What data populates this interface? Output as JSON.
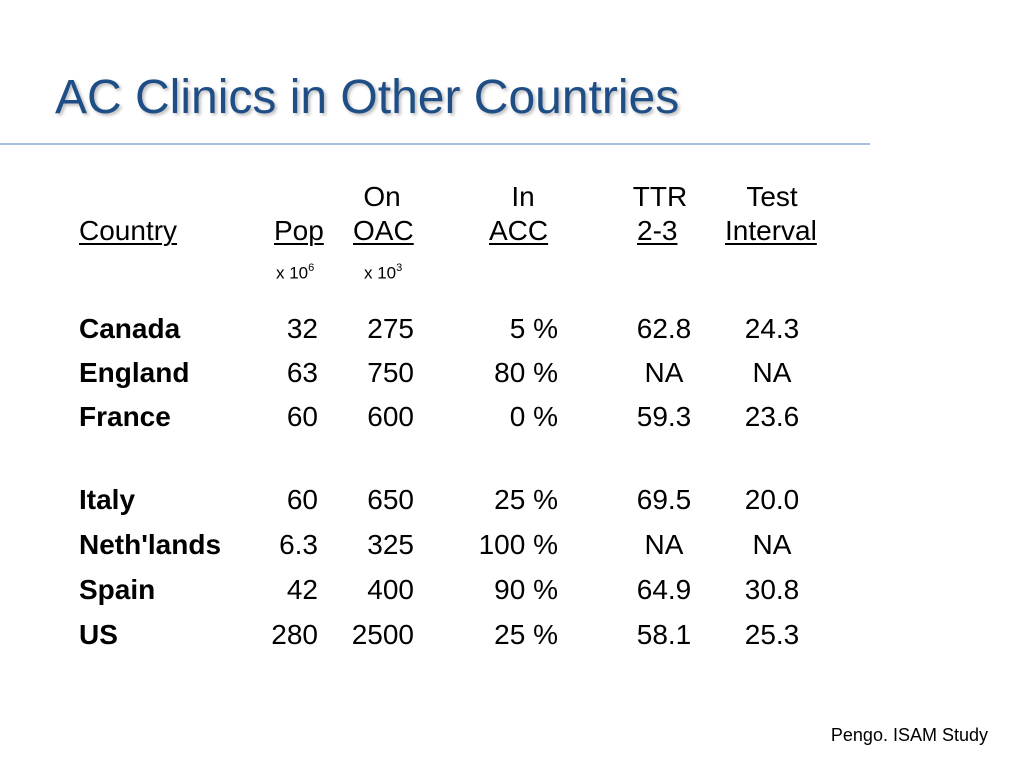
{
  "title": "AC Clinics in Other Countries",
  "header": {
    "country": "Country",
    "pop": "Pop",
    "on_oac_top": "On",
    "on_oac_bottom": "OAC",
    "in_acc_top": "In",
    "in_acc_bottom": "ACC",
    "ttr_top": "TTR",
    "ttr_bottom": "2-3",
    "test_top": "Test",
    "test_bottom": "Interval",
    "pop_unit_base": "x 10",
    "pop_unit_exp": "6",
    "oac_unit_base": "x 10",
    "oac_unit_exp": "3"
  },
  "rows": [
    {
      "country": "Canada",
      "pop": "32",
      "oac": "275",
      "acc": "5 %",
      "ttr": "62.8",
      "test": "24.3"
    },
    {
      "country": "England",
      "pop": "63",
      "oac": "750",
      "acc": "80 %",
      "ttr": "NA",
      "test": "NA"
    },
    {
      "country": "France",
      "pop": "60",
      "oac": "600",
      "acc": "0 %",
      "ttr": "59.3",
      "test": "23.6"
    },
    {
      "country": "Italy",
      "pop": "60",
      "oac": "650",
      "acc": "25 %",
      "ttr": "69.5",
      "test": "20.0"
    },
    {
      "country": "Neth'lands",
      "pop": "6.3",
      "oac": "325",
      "acc": "100 %",
      "ttr": "NA",
      "test": "NA"
    },
    {
      "country": "Spain",
      "pop": "42",
      "oac": "400",
      "acc": "90 %",
      "ttr": "64.9",
      "test": "30.8"
    },
    {
      "country": "US",
      "pop": "280",
      "oac": "2500",
      "acc": "25 %",
      "ttr": "58.1",
      "test": "25.3"
    }
  ],
  "source": "Pengo. ISAM Study"
}
